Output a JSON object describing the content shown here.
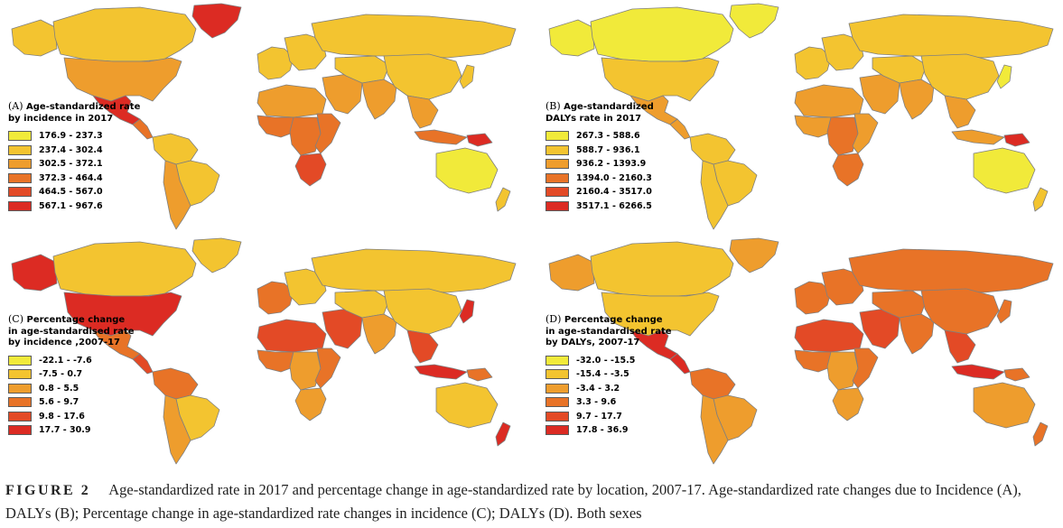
{
  "map_style": {
    "country_outline_color": "#7f7f7f",
    "background_color": "#ffffff",
    "legend_swatch_border": "#5a5a5a"
  },
  "panels": [
    {
      "letter": "(A)",
      "title_lines": [
        "Age-standardized rate",
        "by incidence in 2017"
      ],
      "metric": "Age-standardized incidence rate, 2017",
      "legend": [
        {
          "range": "176.9 - 237.3",
          "color": "#f1ea3a"
        },
        {
          "range": "237.4 - 302.4",
          "color": "#f3c430"
        },
        {
          "range": "302.5 - 372.1",
          "color": "#ee9d2d"
        },
        {
          "range": "372.3 - 464.4",
          "color": "#e87327"
        },
        {
          "range": "464.5 - 567.0",
          "color": "#e34a26"
        },
        {
          "range": "567.1 - 967.6",
          "color": "#dc2b23"
        }
      ]
    },
    {
      "letter": "(B)",
      "title_lines": [
        "Age-standardized",
        "DALYs rate in 2017"
      ],
      "metric": "Age-standardized DALYs rate, 2017",
      "legend": [
        {
          "range": "267.3 - 588.6",
          "color": "#f1ea3a"
        },
        {
          "range": "588.7 - 936.1",
          "color": "#f3c430"
        },
        {
          "range": "936.2 - 1393.9",
          "color": "#ee9d2d"
        },
        {
          "range": "1394.0 - 2160.3",
          "color": "#e87327"
        },
        {
          "range": "2160.4 - 3517.0",
          "color": "#e34a26"
        },
        {
          "range": "3517.1 - 6266.5",
          "color": "#dc2b23"
        }
      ]
    },
    {
      "letter": "(C)",
      "title_lines": [
        "Percentage change",
        "in age-standardised rate",
        "by incidence ,2007-17"
      ],
      "metric": "Percentage change in age-standardised incidence rate, 2007-17",
      "legend": [
        {
          "range": "-22.1 - -7.6",
          "color": "#f1ea3a"
        },
        {
          "range": "-7.5 - 0.7",
          "color": "#f3c430"
        },
        {
          "range": "0.8 - 5.5",
          "color": "#ee9d2d"
        },
        {
          "range": "5.6 - 9.7",
          "color": "#e87327"
        },
        {
          "range": "9.8 - 17.6",
          "color": "#e34a26"
        },
        {
          "range": "17.7 - 30.9",
          "color": "#dc2b23"
        }
      ]
    },
    {
      "letter": "(D)",
      "title_lines": [
        "Percentage change",
        "in age-standardised rate",
        "by DALYs, 2007-17"
      ],
      "metric": "Percentage change in age-standardised DALYs rate, 2007-17",
      "legend": [
        {
          "range": "-32.0 - -15.5",
          "color": "#f1ea3a"
        },
        {
          "range": "-15.4 - -3.5",
          "color": "#f3c430"
        },
        {
          "range": "-3.4 - 3.2",
          "color": "#ee9d2d"
        },
        {
          "range": "3.3 - 9.6",
          "color": "#e87327"
        },
        {
          "range": "9.7 - 17.7",
          "color": "#e34a26"
        },
        {
          "range": "17.8 - 36.9",
          "color": "#dc2b23"
        }
      ]
    }
  ],
  "region_fills": {
    "A": {
      "greenland": "#dc2b23",
      "canada": "#f3c430",
      "alaska": "#f3c430",
      "usa": "#ee9d2d",
      "mexico": "#dc2b23",
      "central_america": "#e87327",
      "south_america_north": "#f3c430",
      "brazil": "#f3c430",
      "south_america_south": "#ee9d2d",
      "europe_west": "#f3c430",
      "europe_east": "#f3c430",
      "russia": "#f3c430",
      "north_africa": "#ee9d2d",
      "west_africa": "#e87327",
      "central_africa": "#e87327",
      "east_africa": "#e87327",
      "southern_africa": "#e34a26",
      "middle_east": "#ee9d2d",
      "central_asia": "#f3c430",
      "south_asia": "#ee9d2d",
      "china": "#f3c430",
      "southeast_asia": "#ee9d2d",
      "japan": "#f3c430",
      "indonesia": "#e87327",
      "new_guinea": "#dc2b23",
      "australia": "#f1ea3a",
      "new_zealand": "#f3c430"
    },
    "B": {
      "greenland": "#f1ea3a",
      "canada": "#f1ea3a",
      "alaska": "#f1ea3a",
      "usa": "#f3c430",
      "mexico": "#ee9d2d",
      "central_america": "#ee9d2d",
      "south_america_north": "#f3c430",
      "brazil": "#f3c430",
      "south_america_south": "#f3c430",
      "europe_west": "#f3c430",
      "europe_east": "#f3c430",
      "russia": "#f3c430",
      "north_africa": "#ee9d2d",
      "west_africa": "#ee9d2d",
      "central_africa": "#e87327",
      "east_africa": "#ee9d2d",
      "southern_africa": "#e87327",
      "middle_east": "#ee9d2d",
      "central_asia": "#f3c430",
      "south_asia": "#ee9d2d",
      "china": "#f3c430",
      "southeast_asia": "#ee9d2d",
      "japan": "#f1ea3a",
      "indonesia": "#ee9d2d",
      "new_guinea": "#dc2b23",
      "australia": "#f1ea3a",
      "new_zealand": "#f3c430"
    },
    "C": {
      "greenland": "#f3c430",
      "canada": "#f3c430",
      "alaska": "#dc2b23",
      "usa": "#dc2b23",
      "mexico": "#e87327",
      "central_america": "#e34a26",
      "south_america_north": "#e87327",
      "brazil": "#f3c430",
      "south_america_south": "#ee9d2d",
      "europe_west": "#e87327",
      "europe_east": "#f3c430",
      "russia": "#f3c430",
      "north_africa": "#e34a26",
      "west_africa": "#e87327",
      "central_africa": "#ee9d2d",
      "east_africa": "#e87327",
      "southern_africa": "#ee9d2d",
      "middle_east": "#e34a26",
      "central_asia": "#f3c430",
      "south_asia": "#ee9d2d",
      "china": "#f3c430",
      "southeast_asia": "#e34a26",
      "japan": "#dc2b23",
      "indonesia": "#dc2b23",
      "new_guinea": "#e87327",
      "australia": "#f3c430",
      "new_zealand": "#dc2b23"
    },
    "D": {
      "greenland": "#ee9d2d",
      "canada": "#f3c430",
      "alaska": "#ee9d2d",
      "usa": "#f3c430",
      "mexico": "#dc2b23",
      "central_america": "#dc2b23",
      "south_america_north": "#e87327",
      "brazil": "#ee9d2d",
      "south_america_south": "#ee9d2d",
      "europe_west": "#e87327",
      "europe_east": "#e87327",
      "russia": "#e87327",
      "north_africa": "#e34a26",
      "west_africa": "#e87327",
      "central_africa": "#ee9d2d",
      "east_africa": "#e87327",
      "southern_africa": "#ee9d2d",
      "middle_east": "#e34a26",
      "central_asia": "#e87327",
      "south_asia": "#e87327",
      "china": "#e87327",
      "southeast_asia": "#e34a26",
      "japan": "#e87327",
      "indonesia": "#dc2b23",
      "new_guinea": "#e87327",
      "australia": "#ee9d2d",
      "new_zealand": "#e87327"
    }
  },
  "caption": {
    "label": "FIGURE 2",
    "text": "Age-standardized rate in 2017 and percentage change in age-standardized rate by location, 2007-17. Age-standardized rate changes due to Incidence (A), DALYs (B); Percentage change in age-standardized rate changes in incidence (C); DALYs (D). Both sexes"
  }
}
